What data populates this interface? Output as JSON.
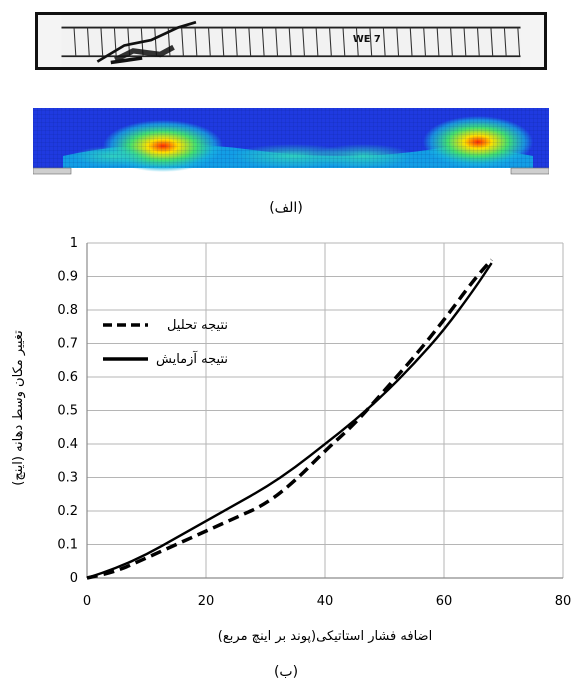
{
  "figure_a": {
    "caption": "(الف)",
    "photo_label": "WE 7"
  },
  "figure_b": {
    "caption": "(ب)"
  },
  "chart_data": {
    "type": "line",
    "xlabel": "اضافه فشار استاتیکی(پوند بر اینچ مربع)",
    "ylabel": "تغییر مکان وسط دهانه (اینچ)",
    "xlim": [
      0,
      80
    ],
    "ylim": [
      0,
      1
    ],
    "xticks": [
      "0",
      "20",
      "40",
      "60",
      "80"
    ],
    "yticks": [
      "0",
      "0.1",
      "0.2",
      "0.3",
      "0.4",
      "0.5",
      "0.6",
      "0.7",
      "0.8",
      "0.9",
      "1"
    ],
    "grid": true,
    "legend_position": "top-left",
    "series": [
      {
        "name": "نتیجه تحلیل",
        "style": "dashed",
        "x": [
          0,
          5,
          10,
          15,
          20,
          25,
          30,
          35,
          40,
          45,
          50,
          55,
          60,
          65,
          68
        ],
        "y": [
          0,
          0.02,
          0.06,
          0.1,
          0.14,
          0.18,
          0.22,
          0.29,
          0.38,
          0.46,
          0.56,
          0.66,
          0.77,
          0.89,
          0.95
        ]
      },
      {
        "name": "نتیجه آزمایش",
        "style": "solid",
        "x": [
          0,
          5,
          10,
          15,
          20,
          25,
          30,
          35,
          40,
          45,
          50,
          55,
          60,
          65,
          68
        ],
        "y": [
          0,
          0.03,
          0.07,
          0.12,
          0.17,
          0.22,
          0.27,
          0.33,
          0.4,
          0.47,
          0.55,
          0.64,
          0.74,
          0.86,
          0.94
        ]
      }
    ]
  }
}
